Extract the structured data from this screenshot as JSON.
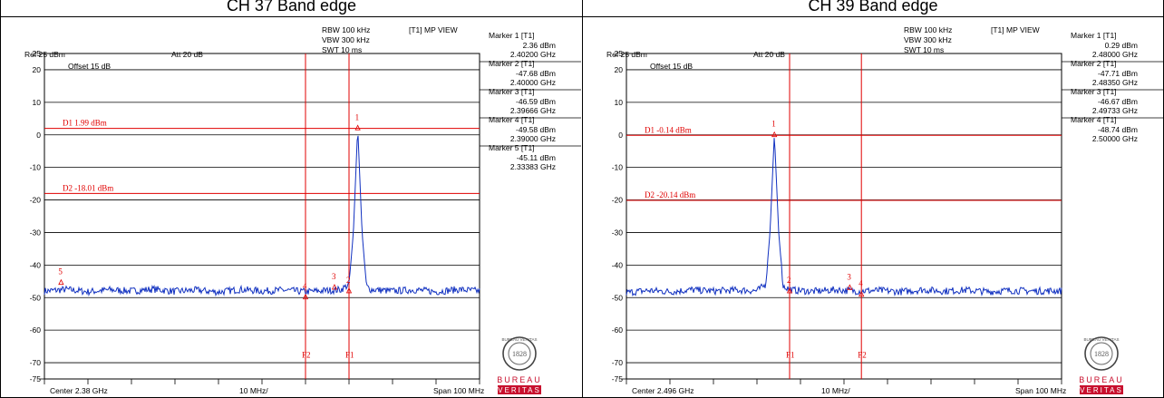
{
  "panels": [
    {
      "title": "CH 37 Band edge",
      "header": {
        "ref": "Ref 25 dBm",
        "att": "Att 20 dB",
        "rbw": "RBW 100 kHz",
        "vbw": "VBW 300 kHz",
        "swt": "SWT 10 ms",
        "view": "[T1] MP VIEW",
        "offset": "Offset 15 dB"
      },
      "footer": {
        "center": "Center 2.38 GHz",
        "div": "10 MHz/",
        "span": "Span 100 MHz"
      },
      "markers": [
        {
          "label": "Marker 1 [T1]",
          "level": "2.36 dBm",
          "freq": "2.40200 GHz"
        },
        {
          "label": "Marker 2 [T1]",
          "level": "-47.68 dBm",
          "freq": "2.40000 GHz"
        },
        {
          "label": "Marker 3 [T1]",
          "level": "-46.59 dBm",
          "freq": "2.39666 GHz"
        },
        {
          "label": "Marker 4 [T1]",
          "level": "-49.58 dBm",
          "freq": "2.39000 GHz"
        },
        {
          "label": "Marker 5 [T1]",
          "level": "-45.11 dBm",
          "freq": "2.33383 GHz"
        }
      ]
    },
    {
      "title": "CH 39 Band edge",
      "header": {
        "ref": "Ref 25 dBm",
        "att": "Att 20 dB",
        "rbw": "RBW 100 kHz",
        "vbw": "VBW 300 kHz",
        "swt": "SWT 10 ms",
        "view": "[T1] MP VIEW",
        "offset": "Offset 15 dB"
      },
      "footer": {
        "center": "Center 2.496 GHz",
        "div": "10 MHz/",
        "span": "Span 100 MHz"
      },
      "markers": [
        {
          "label": "Marker 1 [T1]",
          "level": "0.29 dBm",
          "freq": "2.48000 GHz"
        },
        {
          "label": "Marker 2 [T1]",
          "level": "-47.71 dBm",
          "freq": "2.48350 GHz"
        },
        {
          "label": "Marker 3 [T1]",
          "level": "-46.67 dBm",
          "freq": "2.49733 GHz"
        },
        {
          "label": "Marker 4 [T1]",
          "level": "-48.74 dBm",
          "freq": "2.50000 GHz"
        }
      ]
    }
  ],
  "logo": {
    "line1": "BUREAU",
    "line2": "VERITAS",
    "ring_text": "BUREAU VERITAS",
    "year": "1828"
  },
  "colors": {
    "trace": "#1030c0",
    "marker": "#e00000",
    "grid": "#000000",
    "logo_red": "#c8102e"
  },
  "chart_data": [
    {
      "type": "line",
      "title": "CH 37 Band edge",
      "xunit": "GHz",
      "xlim": [
        2.33,
        2.43
      ],
      "ylim": [
        -75,
        25
      ],
      "yticks": [
        25,
        20,
        10,
        0,
        -10,
        -20,
        -30,
        -40,
        -50,
        -60,
        -70,
        -75
      ],
      "ytick_labels": [
        "25",
        "20",
        "10",
        "0",
        "-10",
        "-20",
        "-30",
        "-40",
        "-50",
        "-60",
        "-70",
        "-75"
      ],
      "grid": true,
      "series": [
        {
          "x": [
            2.33,
            2.335,
            2.34,
            2.345,
            2.35,
            2.355,
            2.36,
            2.365,
            2.37,
            2.375,
            2.38,
            2.385,
            2.39,
            2.395,
            2.398,
            2.4,
            2.401,
            2.402,
            2.403,
            2.404,
            2.405,
            2.41,
            2.415,
            2.42,
            2.425,
            2.43
          ],
          "y": [
            -48,
            -47.5,
            -48.2,
            -47.6,
            -48,
            -47.4,
            -48.1,
            -47.7,
            -48.3,
            -47.5,
            -48,
            -47.7,
            -48.2,
            -47.8,
            -47.6,
            -46,
            -30,
            2.4,
            -30,
            -46.5,
            -47.5,
            -48,
            -47.6,
            -48.2,
            -47.5,
            -48
          ]
        }
      ],
      "hlines": [
        {
          "label": "D1 1.99 dBm",
          "y": 1.99
        },
        {
          "label": "D2 -18.01 dBm",
          "y": -18.01
        }
      ],
      "vlines": [
        {
          "label": "F2",
          "x": 2.39
        },
        {
          "label": "F1",
          "x": 2.4
        }
      ],
      "markers": [
        {
          "id": "1",
          "x": 2.402,
          "y": 2.36
        },
        {
          "id": "2",
          "x": 2.4,
          "y": -47.68
        },
        {
          "id": "3",
          "x": 2.39666,
          "y": -46.59
        },
        {
          "id": "4",
          "x": 2.39,
          "y": -49.58
        },
        {
          "id": "5",
          "x": 2.33383,
          "y": -45.11
        }
      ]
    },
    {
      "type": "line",
      "title": "CH 39 Band edge",
      "xunit": "GHz",
      "xlim": [
        2.446,
        2.546
      ],
      "ylim": [
        -75,
        25
      ],
      "yticks": [
        25,
        20,
        10,
        0,
        -10,
        -20,
        -30,
        -40,
        -50,
        -60,
        -70,
        -75
      ],
      "ytick_labels": [
        "25",
        "20",
        "10",
        "0",
        "-10",
        "-20",
        "-30",
        "-40",
        "-50",
        "-60",
        "-70",
        "-75"
      ],
      "grid": true,
      "series": [
        {
          "x": [
            2.446,
            2.451,
            2.456,
            2.461,
            2.466,
            2.471,
            2.476,
            2.478,
            2.479,
            2.48,
            2.481,
            2.482,
            2.484,
            2.489,
            2.494,
            2.499,
            2.504,
            2.509,
            2.514,
            2.519,
            2.524,
            2.529,
            2.534,
            2.539,
            2.546
          ],
          "y": [
            -48.5,
            -47.8,
            -48.2,
            -47.6,
            -48,
            -47.7,
            -47.9,
            -46,
            -30,
            0.3,
            -30,
            -46.5,
            -47.7,
            -48.1,
            -47.6,
            -48,
            -47.8,
            -48.2,
            -47.6,
            -48,
            -47.7,
            -48.2,
            -47.8,
            -48,
            -47.9
          ]
        }
      ],
      "hlines": [
        {
          "label": "D1 -0.14 dBm",
          "y": -0.14
        },
        {
          "label": "D2 -20.14 dBm",
          "y": -20.14
        }
      ],
      "vlines": [
        {
          "label": "F1",
          "x": 2.4835
        },
        {
          "label": "F2",
          "x": 2.5
        }
      ],
      "markers": [
        {
          "id": "1",
          "x": 2.48,
          "y": 0.29
        },
        {
          "id": "2",
          "x": 2.4835,
          "y": -47.71
        },
        {
          "id": "3",
          "x": 2.49733,
          "y": -46.67
        },
        {
          "id": "4",
          "x": 2.5,
          "y": -48.74
        }
      ]
    }
  ]
}
